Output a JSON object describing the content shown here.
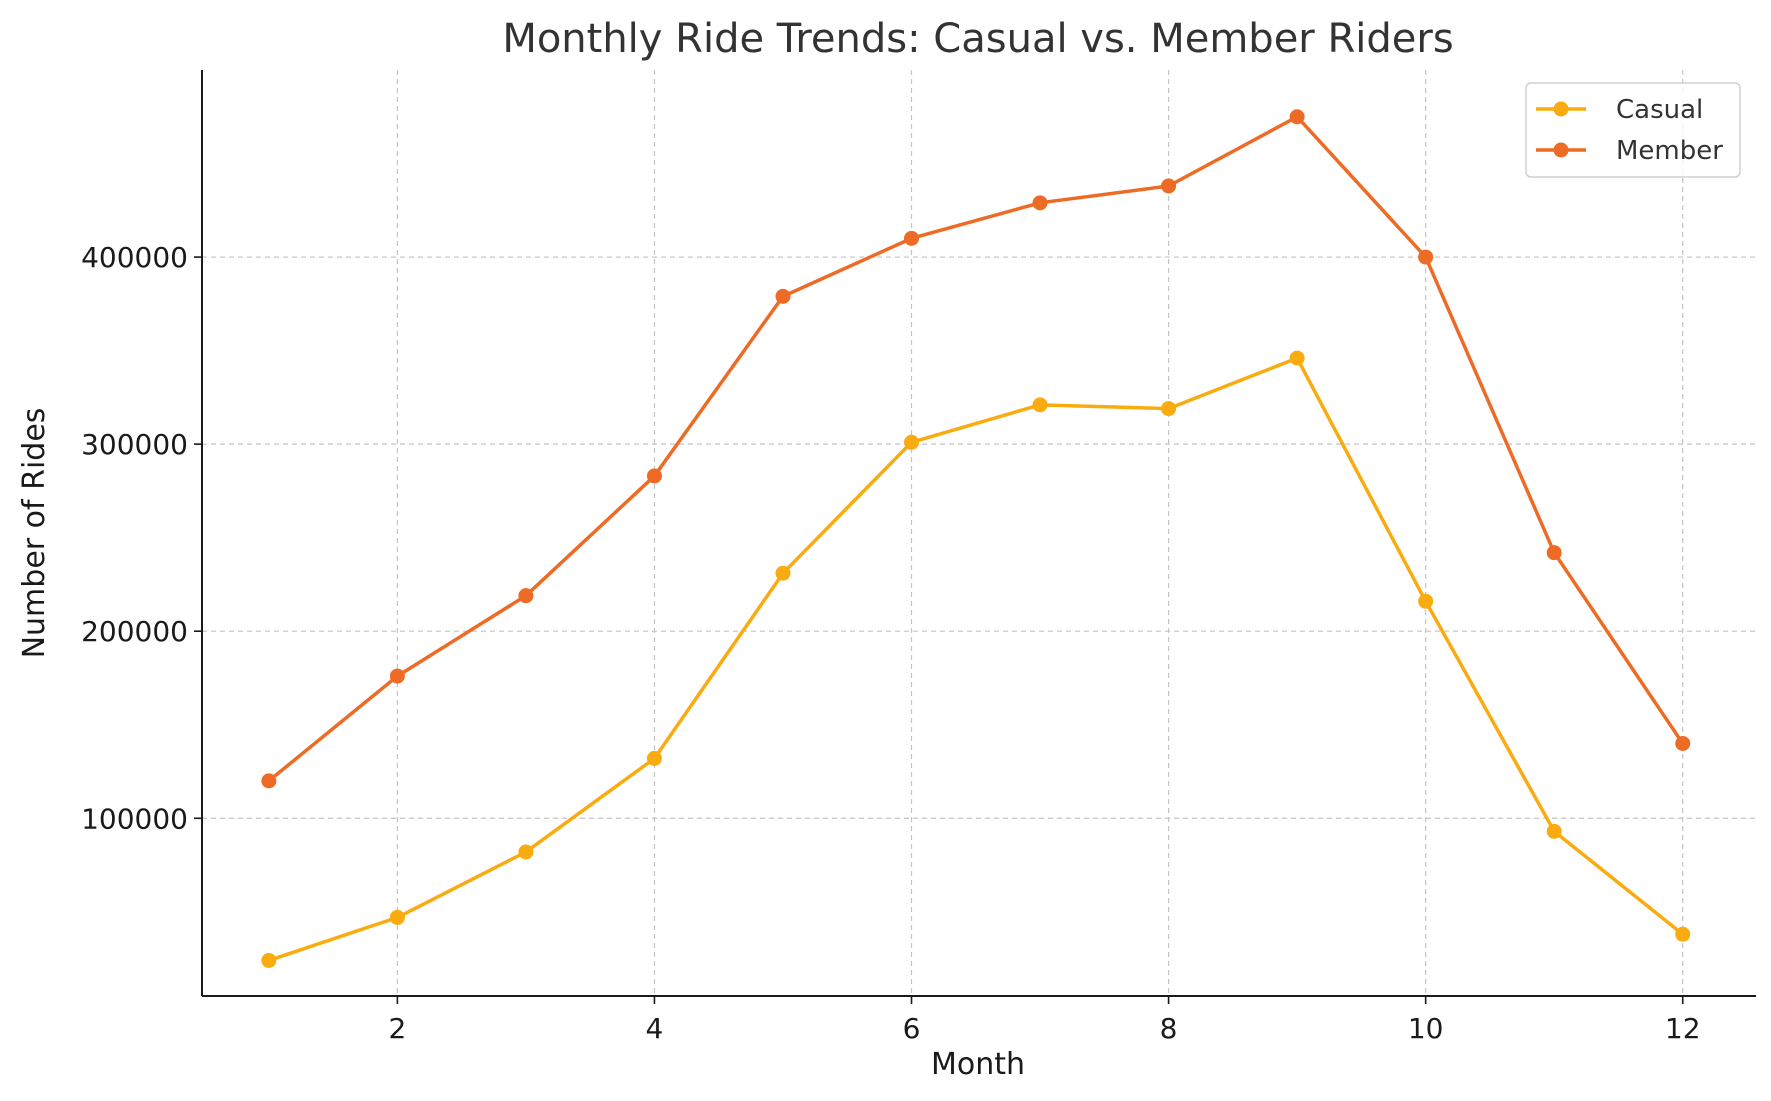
{
  "chart_data": {
    "type": "line",
    "title": "Monthly Ride Trends: Casual vs. Member Riders",
    "xlabel": "Month",
    "ylabel": "Number of Rides",
    "x": [
      1,
      2,
      3,
      4,
      5,
      6,
      7,
      8,
      9,
      10,
      11,
      12
    ],
    "xlim": [
      0.48,
      12.57
    ],
    "ylim": [
      5000,
      500000
    ],
    "xticks": [
      2,
      4,
      6,
      8,
      10,
      12
    ],
    "yticks": [
      100000,
      200000,
      300000,
      400000
    ],
    "grid": true,
    "legend_position": "top-right",
    "series": [
      {
        "name": "Casual",
        "color": "#F9AB0F",
        "values": [
          24000,
          47000,
          82000,
          132000,
          231000,
          301000,
          321000,
          319000,
          346000,
          216000,
          93000,
          38000
        ]
      },
      {
        "name": "Member",
        "color": "#EE6B26",
        "values": [
          120000,
          176000,
          219000,
          283000,
          379000,
          410000,
          429000,
          438000,
          475000,
          400000,
          242000,
          140000
        ]
      }
    ]
  }
}
